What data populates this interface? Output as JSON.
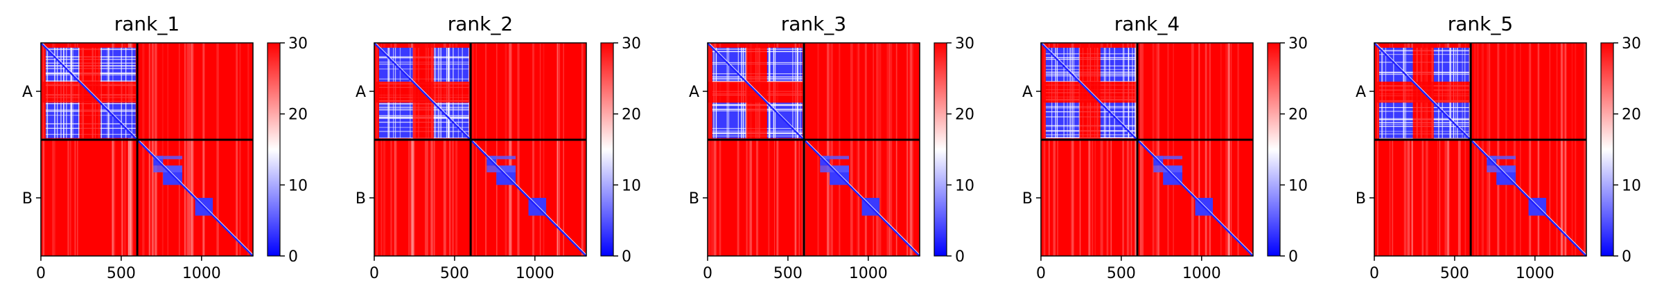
{
  "chart_data": [
    {
      "type": "heatmap",
      "title": "rank_1",
      "y_tick_labels": [
        "A",
        "B"
      ],
      "x_ticks": [
        0,
        500,
        1000
      ],
      "x_range": [
        0,
        1320
      ],
      "chain_boundary": 600,
      "colorbar": {
        "ticks": [
          0,
          10,
          20,
          30
        ],
        "range": [
          0,
          30
        ],
        "colormap": "bwr"
      }
    },
    {
      "type": "heatmap",
      "title": "rank_2",
      "y_tick_labels": [
        "A",
        "B"
      ],
      "x_ticks": [
        0,
        500,
        1000
      ],
      "x_range": [
        0,
        1320
      ],
      "chain_boundary": 600,
      "colorbar": {
        "ticks": [
          0,
          10,
          20,
          30
        ],
        "range": [
          0,
          30
        ],
        "colormap": "bwr"
      }
    },
    {
      "type": "heatmap",
      "title": "rank_3",
      "y_tick_labels": [
        "A",
        "B"
      ],
      "x_ticks": [
        0,
        500,
        1000
      ],
      "x_range": [
        0,
        1320
      ],
      "chain_boundary": 600,
      "colorbar": {
        "ticks": [
          0,
          10,
          20,
          30
        ],
        "range": [
          0,
          30
        ],
        "colormap": "bwr"
      }
    },
    {
      "type": "heatmap",
      "title": "rank_4",
      "y_tick_labels": [
        "A",
        "B"
      ],
      "x_ticks": [
        0,
        500,
        1000
      ],
      "x_range": [
        0,
        1320
      ],
      "chain_boundary": 600,
      "colorbar": {
        "ticks": [
          0,
          10,
          20,
          30
        ],
        "range": [
          0,
          30
        ],
        "colormap": "bwr"
      }
    },
    {
      "type": "heatmap",
      "title": "rank_5",
      "y_tick_labels": [
        "A",
        "B"
      ],
      "x_ticks": [
        0,
        500,
        1000
      ],
      "x_range": [
        0,
        1320
      ],
      "chain_boundary": 600,
      "colorbar": {
        "ticks": [
          0,
          10,
          20,
          30
        ],
        "range": [
          0,
          30
        ],
        "colormap": "bwr"
      }
    }
  ],
  "colors": {
    "low": "#0000ff",
    "mid": "#ffffff",
    "high": "#ff0000",
    "frame": "#000000"
  }
}
